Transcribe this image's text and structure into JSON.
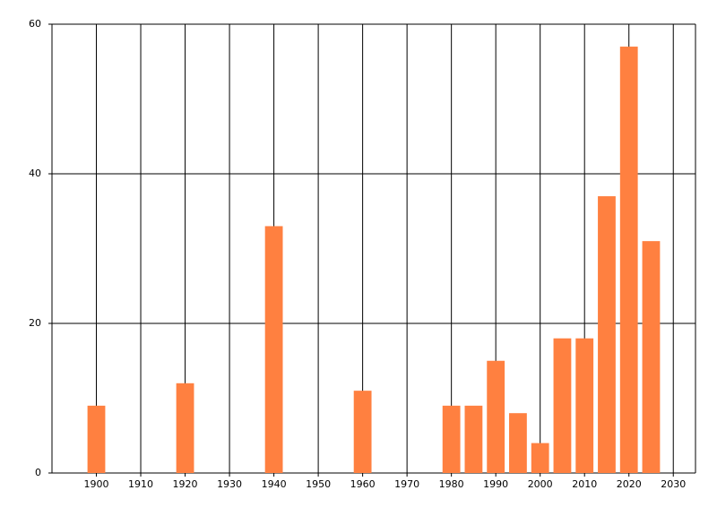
{
  "chart_data": {
    "type": "bar",
    "x": [
      1900,
      1920,
      1940,
      1960,
      1980,
      1985,
      1990,
      1995,
      2000,
      2005,
      2010,
      2015,
      2020,
      2025
    ],
    "values": [
      9,
      12,
      33,
      11,
      9,
      9,
      15,
      8,
      4,
      18,
      18,
      37,
      57,
      31
    ],
    "color": "#ff8040",
    "xlim": [
      1890,
      2035
    ],
    "xticks": [
      1900,
      1910,
      1920,
      1930,
      1940,
      1950,
      1960,
      1970,
      1980,
      1990,
      2000,
      2010,
      2020,
      2030
    ],
    "ylim": [
      0,
      60
    ],
    "yticks": [
      0,
      20,
      40,
      60
    ],
    "grid": true
  }
}
